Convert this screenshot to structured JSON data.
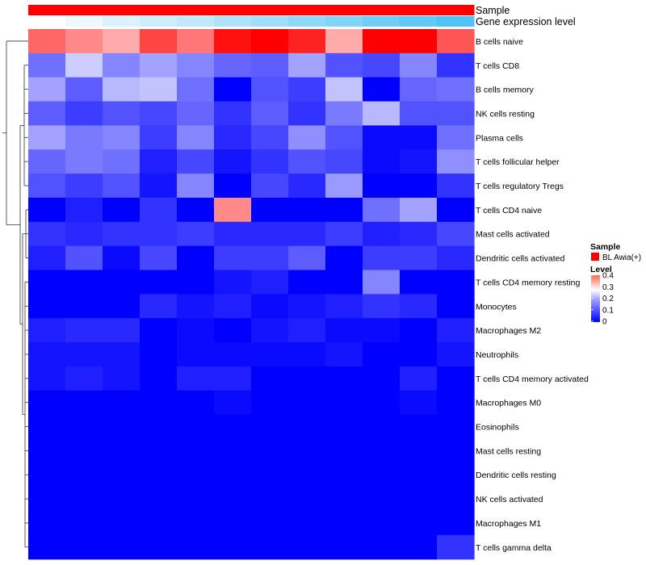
{
  "chart_data": {
    "type": "heatmap",
    "title": "",
    "rows": [
      "B cells naive",
      "T cells CD8",
      "B cells memory",
      "NK cells resting",
      "Plasma cells",
      "T cells follicular helper",
      "T cells regulatory  Tregs",
      "T cells CD4 naive",
      "Mast cells activated",
      "Dendritic cells activated",
      "T cells CD4 memory resting",
      "Monocytes",
      "Macrophages M2",
      "Neutrophils",
      "T cells CD4 memory activated",
      "Macrophages M0",
      "Eosinophils",
      "Mast cells resting",
      "Dendritic cells resting",
      "NK cells activated",
      "Macrophages M1",
      "T cells gamma delta"
    ],
    "column_count": 12,
    "values": [
      [
        0.34,
        0.32,
        0.3,
        0.36,
        0.33,
        0.39,
        0.42,
        0.38,
        0.3,
        0.41,
        0.42,
        0.35
      ],
      [
        0.11,
        0.2,
        0.13,
        0.16,
        0.13,
        0.1,
        0.09,
        0.16,
        0.08,
        0.07,
        0.13,
        0.05
      ],
      [
        0.16,
        0.09,
        0.18,
        0.19,
        0.11,
        0.0,
        0.08,
        0.06,
        0.19,
        0.0,
        0.1,
        0.11
      ],
      [
        0.09,
        0.06,
        0.08,
        0.07,
        0.1,
        0.05,
        0.09,
        0.05,
        0.12,
        0.18,
        0.08,
        0.08
      ],
      [
        0.16,
        0.12,
        0.13,
        0.06,
        0.13,
        0.04,
        0.07,
        0.14,
        0.08,
        0.01,
        0.01,
        0.11
      ],
      [
        0.1,
        0.12,
        0.11,
        0.03,
        0.07,
        0.02,
        0.05,
        0.08,
        0.07,
        0.01,
        0.02,
        0.14
      ],
      [
        0.08,
        0.06,
        0.08,
        0.02,
        0.13,
        0.0,
        0.07,
        0.04,
        0.15,
        0.0,
        0.0,
        0.05
      ],
      [
        0.0,
        0.03,
        0.0,
        0.05,
        0.0,
        0.32,
        0.0,
        0.0,
        0.0,
        0.11,
        0.16,
        0.0
      ],
      [
        0.05,
        0.04,
        0.05,
        0.05,
        0.06,
        0.04,
        0.04,
        0.04,
        0.06,
        0.03,
        0.04,
        0.07
      ],
      [
        0.03,
        0.08,
        0.01,
        0.07,
        0.0,
        0.06,
        0.06,
        0.09,
        0.0,
        0.06,
        0.06,
        0.04
      ],
      [
        0.0,
        0.0,
        0.0,
        0.0,
        0.0,
        0.02,
        0.03,
        0.0,
        0.0,
        0.13,
        0.0,
        0.0
      ],
      [
        0.0,
        0.0,
        0.0,
        0.04,
        0.02,
        0.03,
        0.01,
        0.02,
        0.03,
        0.05,
        0.04,
        0.0
      ],
      [
        0.03,
        0.04,
        0.04,
        0.0,
        0.01,
        0.0,
        0.02,
        0.03,
        0.01,
        0.01,
        0.0,
        0.03
      ],
      [
        0.02,
        0.02,
        0.02,
        0.0,
        0.01,
        0.01,
        0.01,
        0.01,
        0.02,
        0.0,
        0.0,
        0.02
      ],
      [
        0.02,
        0.03,
        0.02,
        0.0,
        0.03,
        0.03,
        0.0,
        0.0,
        0.0,
        0.0,
        0.03,
        0.0
      ],
      [
        0.0,
        0.0,
        0.0,
        0.0,
        0.0,
        0.01,
        0.0,
        0.0,
        0.0,
        0.0,
        0.01,
        0.0
      ],
      [
        0.0,
        0.0,
        0.0,
        0.0,
        0.0,
        0.0,
        0.0,
        0.0,
        0.0,
        0.0,
        0.0,
        0.0
      ],
      [
        0.0,
        0.0,
        0.0,
        0.0,
        0.0,
        0.0,
        0.0,
        0.0,
        0.0,
        0.0,
        0.0,
        0.0
      ],
      [
        0.0,
        0.0,
        0.0,
        0.0,
        0.0,
        0.0,
        0.0,
        0.0,
        0.0,
        0.0,
        0.0,
        0.0
      ],
      [
        0.0,
        0.0,
        0.0,
        0.0,
        0.0,
        0.0,
        0.0,
        0.0,
        0.0,
        0.0,
        0.0,
        0.0
      ],
      [
        0.0,
        0.0,
        0.0,
        0.0,
        0.0,
        0.0,
        0.0,
        0.0,
        0.0,
        0.0,
        0.0,
        0.0
      ],
      [
        0.0,
        0.0,
        0.0,
        0.0,
        0.0,
        0.0,
        0.0,
        0.0,
        0.0,
        0.0,
        0.0,
        0.05
      ]
    ],
    "value_range": [
      0,
      0.4
    ],
    "color_scale": {
      "low": "#0000ff",
      "mid": "#ffffff",
      "high": "#ff0000",
      "mid_value": 0.25
    },
    "column_annotations": [
      {
        "name": "Sample",
        "values": [
          "BL Awia(+)",
          "BL Awia(+)",
          "BL Awia(+)",
          "BL Awia(+)",
          "BL Awia(+)",
          "BL Awia(+)",
          "BL Awia(+)",
          "BL Awia(+)",
          "BL Awia(+)",
          "BL Awia(+)",
          "BL Awia(+)",
          "BL Awia(+)"
        ],
        "color": "#ff0000"
      },
      {
        "name": "Gene expression level",
        "values": [
          0.0,
          0.05,
          0.1,
          0.14,
          0.18,
          0.23,
          0.27,
          0.32,
          0.36,
          0.41,
          0.45,
          0.5
        ],
        "color_low": "#ffffff",
        "color_high": "#4fc3f7"
      }
    ],
    "legend": {
      "placement": "right",
      "sample": {
        "title": "Sample",
        "entries": [
          {
            "label": "BL Awia(+)",
            "color": "#ff0000"
          }
        ]
      },
      "level": {
        "title": "Level",
        "ticks": [
          "0.4",
          "0.3",
          "0.2",
          "0.1",
          "0"
        ]
      }
    },
    "dendrogram": "rows"
  }
}
